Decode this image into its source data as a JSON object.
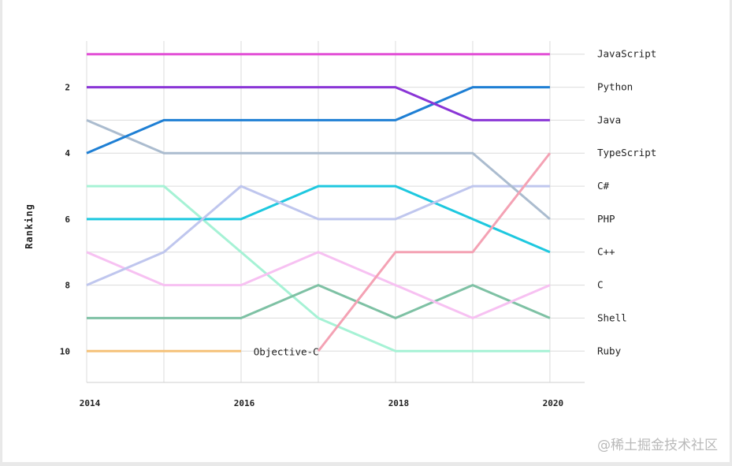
{
  "chart_data": {
    "type": "line",
    "ylabel": "Ranking",
    "xlabel": "",
    "x": [
      2014,
      2015,
      2016,
      2017,
      2018,
      2019,
      2020
    ],
    "x_tick_labels": [
      "2014",
      "2016",
      "2018",
      "2020"
    ],
    "x_ticks": [
      2014,
      2016,
      2018,
      2020
    ],
    "xlim": [
      2014,
      2020.45
    ],
    "y_tick_labels": [
      "2",
      "4",
      "6",
      "8",
      "10"
    ],
    "y_ticks": [
      2,
      4,
      6,
      8,
      10
    ],
    "ylim": [
      0.6,
      10.95
    ],
    "y_inverted": true,
    "grid": true,
    "series": [
      {
        "name": "JavaScript",
        "color": "#e24fd6",
        "values": [
          1,
          1,
          1,
          1,
          1,
          1,
          1
        ]
      },
      {
        "name": "Python",
        "color": "#8a35d6",
        "values": [
          2,
          2,
          2,
          2,
          2,
          3,
          3
        ]
      },
      {
        "name": "Java",
        "color": "#1e7fd4",
        "values": [
          4,
          3,
          3,
          3,
          3,
          2,
          2
        ]
      },
      {
        "name": "TypeScript",
        "color": "#f4a2b4",
        "values": [
          null,
          null,
          null,
          10,
          7,
          7,
          4
        ]
      },
      {
        "name": "C#",
        "color": "#abbccf",
        "values": [
          3,
          4,
          4,
          4,
          4,
          4,
          6
        ]
      },
      {
        "name": "PHP",
        "color": "#bfc6ee",
        "values": [
          8,
          7,
          5,
          6,
          6,
          5,
          5
        ]
      },
      {
        "name": "C++",
        "color": "#1ec8df",
        "values": [
          6,
          6,
          6,
          5,
          5,
          6,
          7
        ]
      },
      {
        "name": "C",
        "color": "#f7c1f2",
        "values": [
          7,
          8,
          8,
          7,
          8,
          9,
          8
        ]
      },
      {
        "name": "Shell",
        "color": "#7ec1a4",
        "values": [
          9,
          9,
          9,
          8,
          9,
          8,
          9
        ]
      },
      {
        "name": "Ruby",
        "color": "#a6f2d5",
        "values": [
          5,
          5,
          7,
          9,
          10,
          10,
          10
        ]
      },
      {
        "name": "Objective-C",
        "color": "#f5c279",
        "values": [
          10,
          10,
          10,
          null,
          null,
          null,
          null
        ]
      }
    ],
    "right_labels": [
      "JavaScript",
      "Python",
      "Java",
      "TypeScript",
      "C#",
      "PHP",
      "C++",
      "C",
      "Shell",
      "Ruby"
    ],
    "annotation": {
      "text": "Objective-C",
      "x": 2016.1,
      "y": 10
    }
  },
  "watermark": "@稀土掘金技术社区"
}
